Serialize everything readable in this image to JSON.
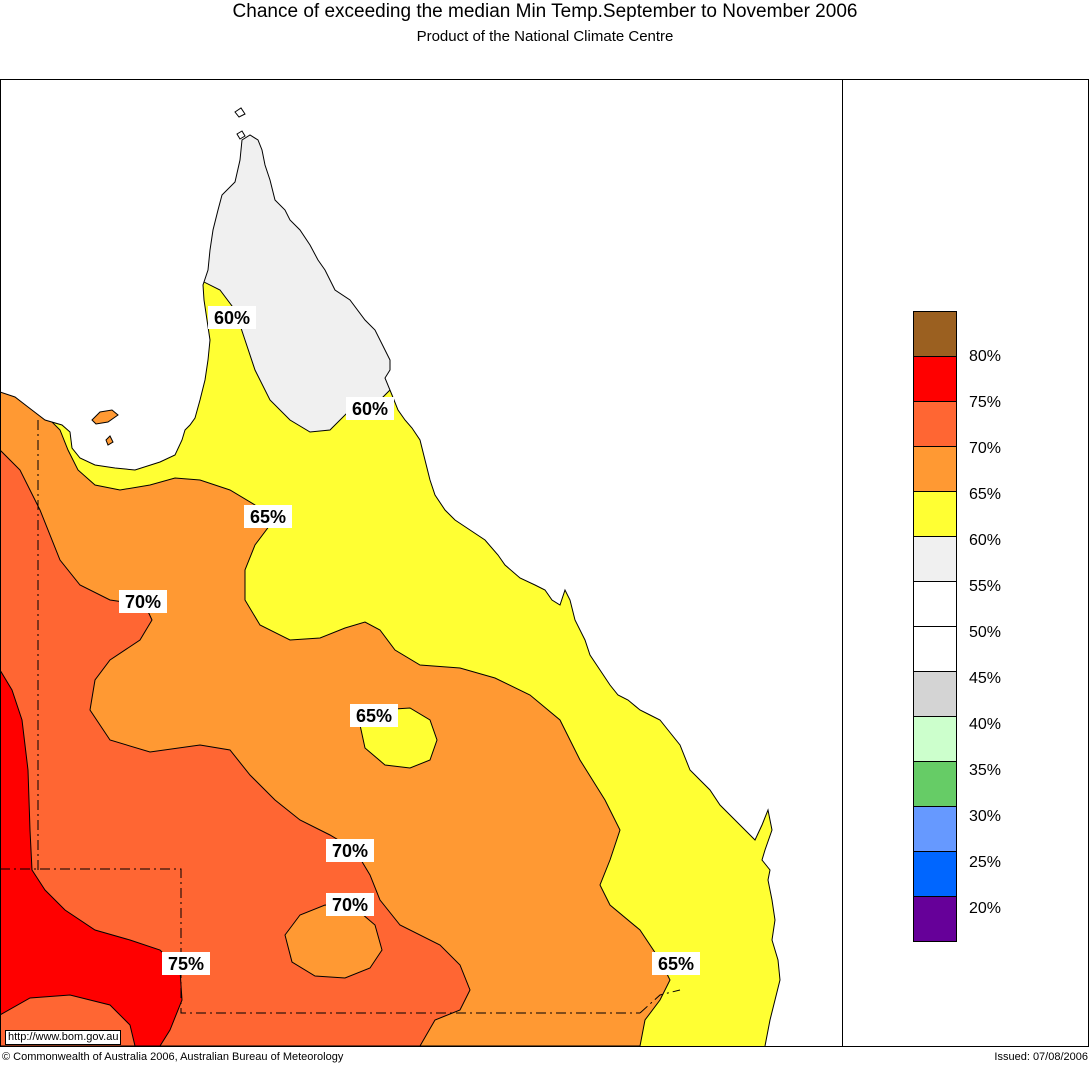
{
  "header": {
    "title": "Chance of exceeding the median Min Temp.September to November 2006",
    "subtitle": "Product of the National Climate Centre"
  },
  "legend": {
    "items": [
      {
        "color": "#9B6020",
        "label": "80%"
      },
      {
        "color": "#FF0000",
        "label": "75%"
      },
      {
        "color": "#FF6633",
        "label": "70%"
      },
      {
        "color": "#FF9933",
        "label": "65%"
      },
      {
        "color": "#FFFF33",
        "label": "60%"
      },
      {
        "color": "#F0F0F0",
        "label": "55%"
      },
      {
        "color": "#FFFFFF",
        "label": "50%"
      },
      {
        "color": "#FFFFFF",
        "label": "45%"
      },
      {
        "color": "#D4D4D4",
        "label": "40%"
      },
      {
        "color": "#CCFFCC",
        "label": "35%"
      },
      {
        "color": "#66CC66",
        "label": "30%"
      },
      {
        "color": "#6699FF",
        "label": "25%"
      },
      {
        "color": "#0066FF",
        "label": "20%"
      },
      {
        "color": "#660099",
        "label": ""
      }
    ]
  },
  "map": {
    "contour_labels": {
      "north_60": "60%",
      "ne_60": "60%",
      "mid_65": "65%",
      "west_70": "70%",
      "centre_65": "65%",
      "centre_70": "70%",
      "south_70": "70%",
      "sw_75": "75%",
      "se_65": "65%"
    },
    "url": "http://www.bom.gov.au"
  },
  "footer": {
    "copyright": "© Commonwealth of Australia 2006, Australian Bureau of Meteorology",
    "issued": "Issued: 07/08/2006"
  }
}
